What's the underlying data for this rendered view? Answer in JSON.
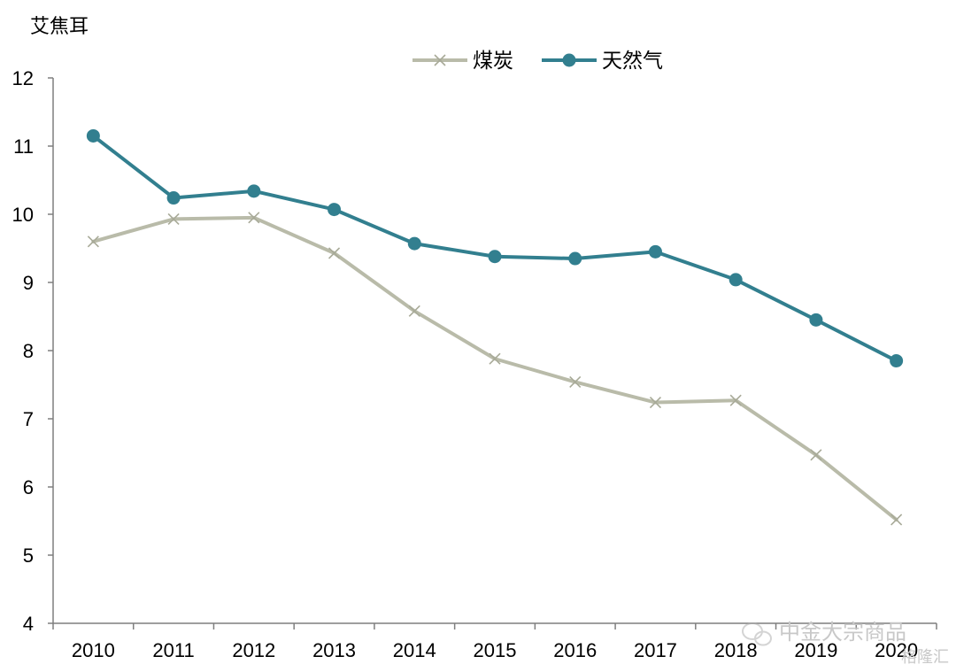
{
  "chart_data": {
    "type": "line",
    "ylabel": "艾焦耳",
    "categories": [
      "2010",
      "2011",
      "2012",
      "2013",
      "2014",
      "2015",
      "2016",
      "2017",
      "2018",
      "2019",
      "2020"
    ],
    "yticks": [
      "4",
      "5",
      "6",
      "7",
      "8",
      "9",
      "10",
      "11",
      "12"
    ],
    "ylim": [
      4,
      12
    ],
    "legend_position": "top-center",
    "series": [
      {
        "name": "煤炭",
        "color": "#b9bba9",
        "marker": "x",
        "values": [
          9.6,
          9.93,
          9.95,
          9.43,
          8.58,
          7.88,
          7.54,
          7.24,
          7.27,
          6.47,
          5.52
        ]
      },
      {
        "name": "天然气",
        "color": "#327f8f",
        "marker": "circle",
        "values": [
          11.15,
          10.24,
          10.34,
          10.07,
          9.57,
          9.38,
          9.35,
          9.45,
          9.04,
          8.45,
          7.85
        ]
      }
    ]
  },
  "watermark": {
    "text": "中金大宗商品",
    "subtext": "格隆汇"
  }
}
